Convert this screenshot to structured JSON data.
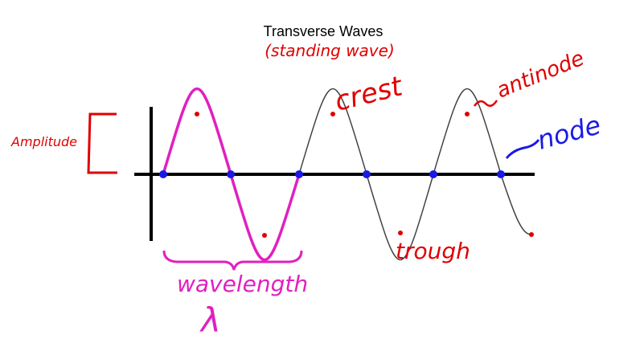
{
  "title": "Transverse Waves",
  "subtitle": "(standing wave)",
  "labels": {
    "amplitude": "Amplitude",
    "crest": "crest",
    "antinode": "antinode",
    "node": "node",
    "trough": "trough",
    "wavelength": "wavelength",
    "lambda": "λ"
  },
  "colors": {
    "axis": "#000000",
    "wave": "#444444",
    "highlight": "#e020c0",
    "annotation": "#e00000",
    "node": "#1a1ae6"
  }
}
